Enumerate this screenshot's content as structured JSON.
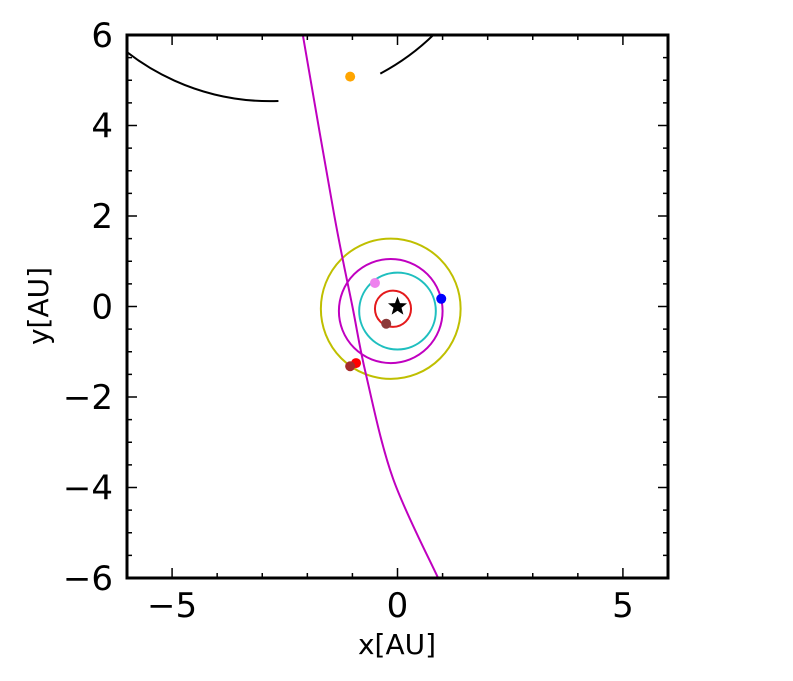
{
  "chart_data": {
    "type": "scatter",
    "title": "",
    "xlabel": "x[AU]",
    "ylabel": "y[AU]",
    "xlim": [
      -6,
      6
    ],
    "ylim": [
      -6,
      6
    ],
    "grid": false,
    "x_ticks": [
      {
        "value": -5,
        "label": "−5"
      },
      {
        "value": 0,
        "label": "0"
      },
      {
        "value": 5,
        "label": "5"
      }
    ],
    "y_ticks": [
      {
        "value": -6,
        "label": "−6"
      },
      {
        "value": -4,
        "label": "−4"
      },
      {
        "value": -2,
        "label": "−2"
      },
      {
        "value": 0,
        "label": "0"
      },
      {
        "value": 2,
        "label": "2"
      },
      {
        "value": 4,
        "label": "4"
      },
      {
        "value": 6,
        "label": "6"
      }
    ],
    "star": {
      "x": 0,
      "y": 0,
      "color": "#000000"
    },
    "orbits": [
      {
        "cx": -0.1,
        "cy": -0.05,
        "r": 0.4,
        "color": "#e41a1c"
      },
      {
        "cx": 0.0,
        "cy": -0.1,
        "r": 0.85,
        "color": "#1fbfbf"
      },
      {
        "cx": -0.15,
        "cy": -0.1,
        "r": 1.15,
        "color": "#c000c0"
      },
      {
        "cx": -0.15,
        "cy": -0.05,
        "r": 1.55,
        "color": "#bfbf00"
      },
      {
        "cx": -0.2,
        "cy": -0.05,
        "r": 5.2,
        "color": "#000000",
        "gap": true
      }
    ],
    "trajectory": {
      "color": "#bf00bf",
      "points": [
        [
          -2.1,
          6.0
        ],
        [
          -1.4,
          2.0
        ],
        [
          -1.0,
          0.0
        ],
        [
          -0.7,
          -1.5
        ],
        [
          -0.1,
          -3.8
        ],
        [
          0.9,
          -6.0
        ]
      ]
    },
    "planets": [
      {
        "x": 0.97,
        "y": 0.17,
        "color": "#0000ff"
      },
      {
        "x": -0.5,
        "y": 0.52,
        "color": "#ee82ee"
      },
      {
        "x": -0.25,
        "y": -0.38,
        "color": "#8b3a3a"
      },
      {
        "x": -0.92,
        "y": -1.25,
        "color": "#ff0000"
      },
      {
        "x": -1.05,
        "y": -1.32,
        "color": "#a52a2a"
      },
      {
        "x": -1.05,
        "y": 5.08,
        "color": "#ffa500"
      }
    ]
  }
}
